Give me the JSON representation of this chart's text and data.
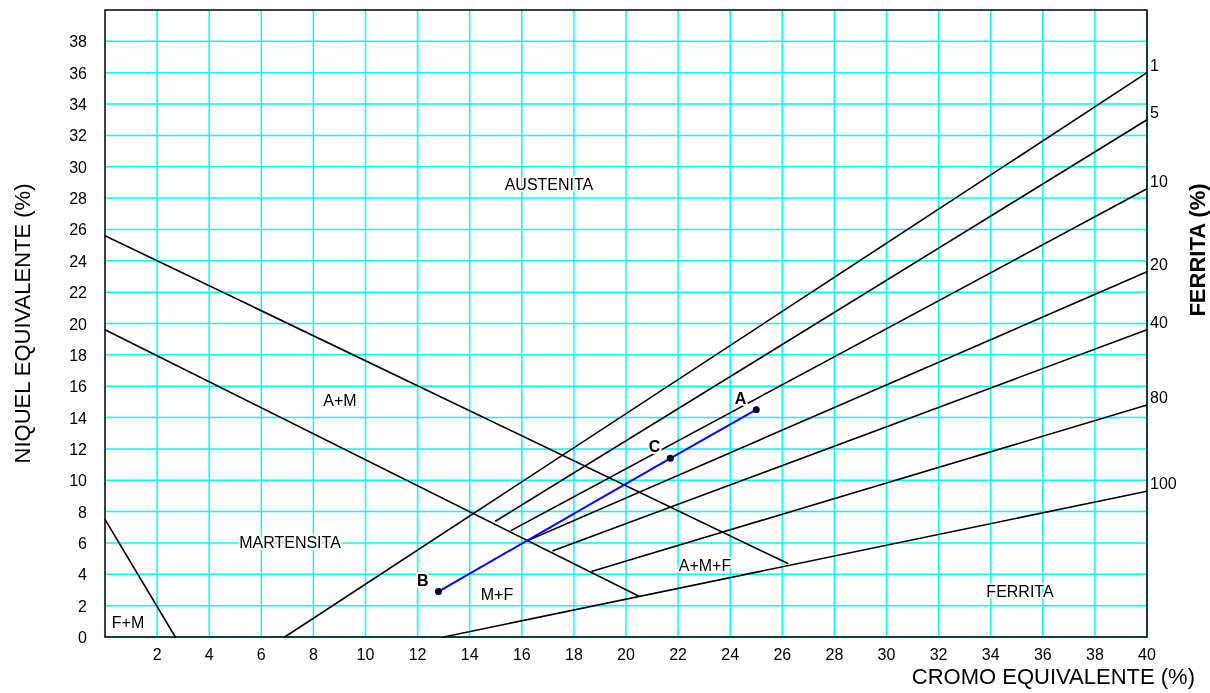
{
  "chart_data": {
    "type": "line",
    "xlabel": "CROMO EQUIVALENTE (%)",
    "ylabel": "NIQUEL EQUIVALENTE (%)",
    "y2label": "FERRITA  (%)",
    "xlim": [
      0,
      40
    ],
    "ylim": [
      0,
      40
    ],
    "xticks": [
      2,
      4,
      6,
      8,
      10,
      12,
      14,
      16,
      18,
      20,
      22,
      24,
      26,
      28,
      30,
      32,
      34,
      36,
      38,
      40
    ],
    "yticks": [
      0,
      2,
      4,
      6,
      8,
      10,
      12,
      14,
      16,
      18,
      20,
      22,
      24,
      26,
      28,
      30,
      32,
      34,
      36,
      38
    ],
    "grid": true,
    "marker": "none",
    "line_style": "solid",
    "series": [
      {
        "name": "1",
        "color": "#000000",
        "x": [
          6.9,
          40
        ],
        "values": [
          0,
          36
        ]
      },
      {
        "name": "5",
        "color": "#000000",
        "x": [
          15,
          40
        ],
        "values": [
          7.4,
          33
        ]
      },
      {
        "name": "10",
        "color": "#000000",
        "x": [
          15.6,
          40
        ],
        "values": [
          6.8,
          28.6
        ]
      },
      {
        "name": "20",
        "color": "#000000",
        "x": [
          16.3,
          40
        ],
        "values": [
          6.2,
          23.3
        ]
      },
      {
        "name": "40",
        "color": "#000000",
        "x": [
          17.2,
          40
        ],
        "values": [
          5.5,
          19.6
        ]
      },
      {
        "name": "80",
        "color": "#000000",
        "x": [
          18.7,
          40
        ],
        "values": [
          4.2,
          14.8
        ]
      },
      {
        "name": "100",
        "color": "#000000",
        "x": [
          13,
          40
        ],
        "values": [
          0,
          9.3
        ]
      },
      {
        "color": "#000000",
        "x": [
          0,
          20.5
        ],
        "values": [
          19.6,
          2.6
        ]
      },
      {
        "color": "#000000",
        "x": [
          0,
          26.2
        ],
        "values": [
          25.6,
          4.7
        ]
      },
      {
        "color": "#000000",
        "x": [
          0,
          2.7
        ],
        "values": [
          7.5,
          0
        ]
      },
      {
        "color": "#0000ff",
        "marker": "circle",
        "x": [
          12.8,
          21.7,
          25
        ],
        "values": [
          2.9,
          11.4,
          14.5
        ]
      }
    ],
    "annotations": [
      {
        "text": "B",
        "x": 12.8,
        "y": 2.9
      },
      {
        "text": "C",
        "x": 21.7,
        "y": 11.4
      },
      {
        "text": "A",
        "x": 25,
        "y": 14.5
      },
      "AUSTENITA",
      "A+M",
      "MARTENSITA",
      "M+F",
      "A+M+F",
      "FERRITA",
      "F+M"
    ]
  }
}
